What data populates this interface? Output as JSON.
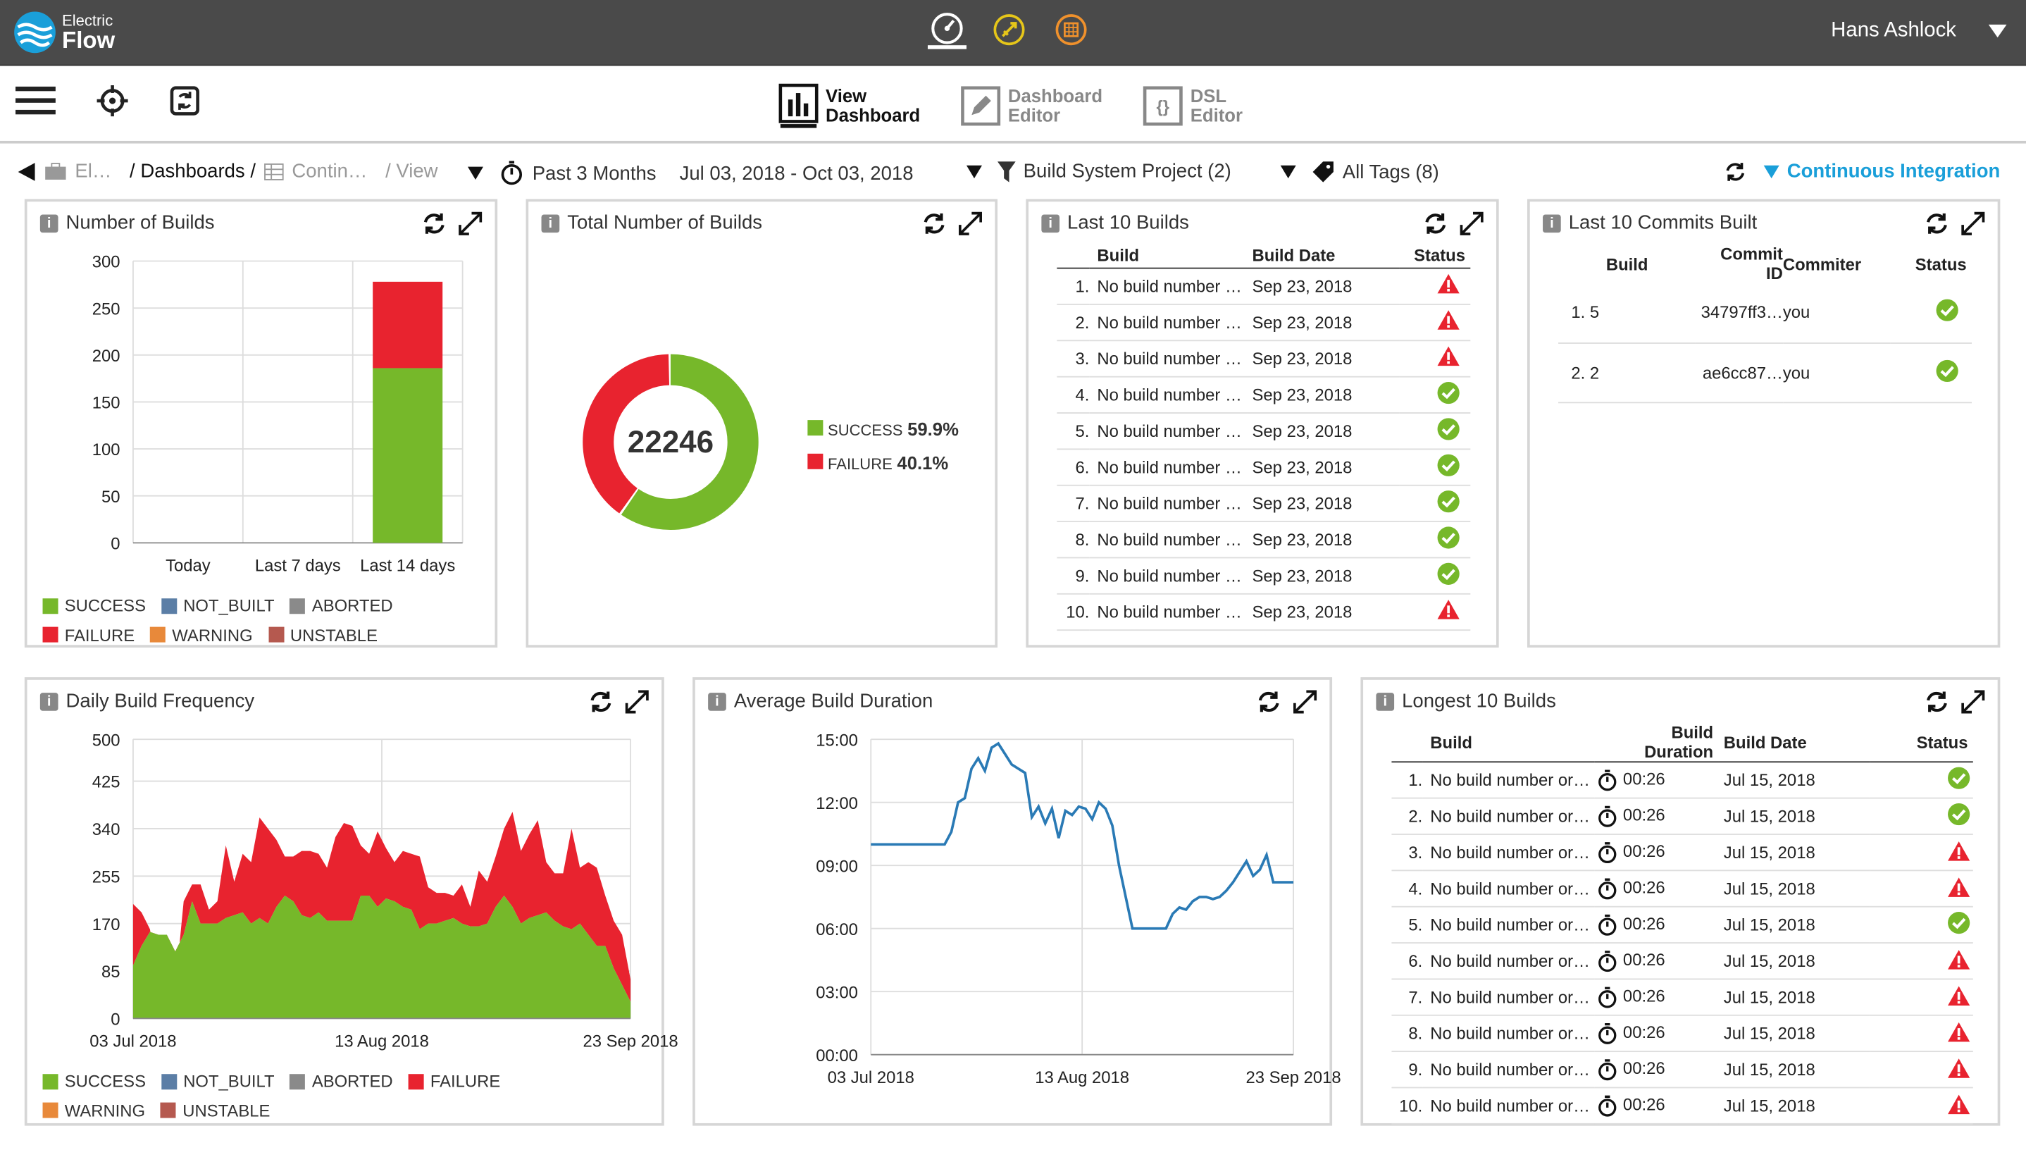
{
  "app": {
    "logo_top": "Electric",
    "logo_bottom": "Flow",
    "user": "Hans Ashlock"
  },
  "toolbar": {
    "view_dashboard": [
      "View",
      "Dashboard"
    ],
    "dashboard_editor": [
      "Dashboard",
      "Editor"
    ],
    "dsl_editor": [
      "DSL",
      "Editor"
    ]
  },
  "breadcrumb": {
    "el": "El…",
    "dashboards": "/ Dashboards /",
    "contin": "Contin…",
    "view": "/ View"
  },
  "filters": {
    "range": "Past 3 Months",
    "dates": "Jul 03, 2018 - Oct 03, 2018",
    "project": "Build System Project (2)",
    "tags": "All Tags (8)",
    "dashboard": "Continuous Integration"
  },
  "colors": {
    "success": "#76b82a",
    "failure": "#e8232f",
    "not_built": "#5b7ea6",
    "aborted": "#8a8a8a",
    "warning": "#e8893a",
    "unstable": "#b5594f",
    "accent": "#1a9fd9",
    "line": "#2a7ab5"
  },
  "panels": {
    "builds": {
      "title": "Number of Builds"
    },
    "total": {
      "title": "Total Number of Builds",
      "center": "22246",
      "legend": [
        {
          "label": "SUCCESS",
          "pct": "59.9%"
        },
        {
          "label": "FAILURE",
          "pct": "40.1%"
        }
      ]
    },
    "last10": {
      "title": "Last 10 Builds",
      "headers": [
        "Build",
        "Build Date",
        "Status"
      ],
      "rows": [
        {
          "n": "1.",
          "build": "No build number …",
          "date": "Sep 23, 2018",
          "status": "failure"
        },
        {
          "n": "2.",
          "build": "No build number …",
          "date": "Sep 23, 2018",
          "status": "failure"
        },
        {
          "n": "3.",
          "build": "No build number …",
          "date": "Sep 23, 2018",
          "status": "failure"
        },
        {
          "n": "4.",
          "build": "No build number …",
          "date": "Sep 23, 2018",
          "status": "success"
        },
        {
          "n": "5.",
          "build": "No build number …",
          "date": "Sep 23, 2018",
          "status": "success"
        },
        {
          "n": "6.",
          "build": "No build number …",
          "date": "Sep 23, 2018",
          "status": "success"
        },
        {
          "n": "7.",
          "build": "No build number …",
          "date": "Sep 23, 2018",
          "status": "success"
        },
        {
          "n": "8.",
          "build": "No build number …",
          "date": "Sep 23, 2018",
          "status": "success"
        },
        {
          "n": "9.",
          "build": "No build number …",
          "date": "Sep 23, 2018",
          "status": "success"
        },
        {
          "n": "10.",
          "build": "No build number …",
          "date": "Sep 23, 2018",
          "status": "failure"
        }
      ]
    },
    "commits": {
      "title": "Last 10 Commits Built",
      "headers": [
        "Build",
        "Commit ID",
        "Commiter",
        "Status"
      ],
      "rows": [
        {
          "n": "1.",
          "build": "5",
          "commit": "34797ff3…",
          "commiter": "you",
          "status": "success"
        },
        {
          "n": "2.",
          "build": "2",
          "commit": "ae6cc87…",
          "commiter": "you",
          "status": "success"
        }
      ]
    },
    "daily": {
      "title": "Daily Build Frequency"
    },
    "duration": {
      "title": "Average Build Duration"
    },
    "longest": {
      "title": "Longest 10 Builds",
      "headers": [
        "Build",
        "Build Duration",
        "Build Date",
        "Status"
      ],
      "rows": [
        {
          "n": "1.",
          "build": "No build number or…",
          "dur": "00:26",
          "date": "Jul 15, 2018",
          "status": "success"
        },
        {
          "n": "2.",
          "build": "No build number or…",
          "dur": "00:26",
          "date": "Jul 15, 2018",
          "status": "success"
        },
        {
          "n": "3.",
          "build": "No build number or…",
          "dur": "00:26",
          "date": "Jul 15, 2018",
          "status": "failure"
        },
        {
          "n": "4.",
          "build": "No build number or…",
          "dur": "00:26",
          "date": "Jul 15, 2018",
          "status": "failure"
        },
        {
          "n": "5.",
          "build": "No build number or…",
          "dur": "00:26",
          "date": "Jul 15, 2018",
          "status": "success"
        },
        {
          "n": "6.",
          "build": "No build number or…",
          "dur": "00:26",
          "date": "Jul 15, 2018",
          "status": "failure"
        },
        {
          "n": "7.",
          "build": "No build number or…",
          "dur": "00:26",
          "date": "Jul 15, 2018",
          "status": "failure"
        },
        {
          "n": "8.",
          "build": "No build number or…",
          "dur": "00:26",
          "date": "Jul 15, 2018",
          "status": "failure"
        },
        {
          "n": "9.",
          "build": "No build number or…",
          "dur": "00:26",
          "date": "Jul 15, 2018",
          "status": "failure"
        },
        {
          "n": "10.",
          "build": "No build number or…",
          "dur": "00:26",
          "date": "Jul 15, 2018",
          "status": "failure"
        }
      ]
    }
  },
  "legend_builds": [
    "SUCCESS",
    "NOT_BUILT",
    "ABORTED",
    "FAILURE",
    "WARNING",
    "UNSTABLE"
  ],
  "chart_data": [
    {
      "type": "bar",
      "title": "Number of Builds",
      "categories": [
        "Today",
        "Last 7 days",
        "Last 14 days"
      ],
      "series": [
        {
          "name": "SUCCESS",
          "values": [
            0,
            0,
            186
          ]
        },
        {
          "name": "FAILURE",
          "values": [
            0,
            0,
            92
          ]
        }
      ],
      "ylim": [
        0,
        300
      ],
      "yticks": [
        0,
        50,
        100,
        150,
        200,
        250,
        300
      ],
      "grid": true
    },
    {
      "type": "pie",
      "title": "Total Number of Builds",
      "center_value": 22246,
      "slices": [
        {
          "name": "SUCCESS",
          "value": 59.9
        },
        {
          "name": "FAILURE",
          "value": 40.1
        }
      ]
    },
    {
      "type": "area",
      "title": "Daily Build Frequency",
      "x_labels": [
        "03 Jul 2018",
        "13 Aug 2018",
        "23 Sep 2018"
      ],
      "yticks": [
        0,
        85,
        170,
        255,
        340,
        425,
        500
      ],
      "ylim": [
        0,
        500
      ],
      "series": [
        {
          "name": "SUCCESS",
          "values": [
            95,
            130,
            155,
            150,
            150,
            120,
            150,
            210,
            170,
            170,
            170,
            180,
            185,
            190,
            170,
            180,
            170,
            200,
            220,
            210,
            185,
            180,
            190,
            175,
            175,
            175,
            175,
            220,
            220,
            200,
            215,
            210,
            200,
            195,
            160,
            170,
            170,
            175,
            180,
            170,
            165,
            165,
            170,
            200,
            220,
            200,
            170,
            180,
            185,
            190,
            175,
            165,
            160,
            170,
            150,
            130,
            130,
            90,
            60,
            30
          ]
        },
        {
          "name": "FAILURE",
          "values": [
            205,
            190,
            160,
            70,
            120,
            55,
            210,
            240,
            240,
            195,
            210,
            310,
            245,
            295,
            280,
            360,
            340,
            320,
            290,
            290,
            300,
            300,
            295,
            270,
            325,
            350,
            345,
            310,
            295,
            335,
            305,
            280,
            300,
            295,
            290,
            235,
            225,
            225,
            220,
            240,
            200,
            265,
            245,
            290,
            340,
            370,
            300,
            330,
            355,
            280,
            260,
            260,
            340,
            270,
            280,
            270,
            220,
            175,
            150,
            70
          ]
        }
      ]
    },
    {
      "type": "line",
      "title": "Average Build Duration",
      "x_labels": [
        "03 Jul 2018",
        "13 Aug 2018",
        "23 Sep 2018"
      ],
      "yticks": [
        "00:00",
        "03:00",
        "06:00",
        "09:00",
        "12:00",
        "15:00"
      ],
      "ylim_minutes": [
        0,
        15
      ],
      "series": [
        {
          "values": [
            10,
            10,
            10,
            10,
            10,
            10,
            10,
            10,
            10,
            10,
            10,
            10,
            10.6,
            12,
            12.2,
            13.6,
            14.1,
            13.5,
            14.6,
            14.8,
            14.3,
            13.8,
            13.6,
            13.4,
            11.3,
            11.8,
            11,
            11.7,
            10.3,
            11.6,
            11.4,
            11.8,
            11.7,
            11.2,
            12,
            11.7,
            10.9,
            9,
            7.5,
            6,
            6,
            6,
            6,
            6,
            6,
            6.7,
            7,
            6.9,
            7.3,
            7.5,
            7.5,
            7.4,
            7.5,
            7.8,
            8.2,
            8.7,
            9.2,
            8.5,
            8.8,
            9.5,
            8.2,
            8.2,
            8.2,
            8.2
          ]
        }
      ]
    }
  ]
}
